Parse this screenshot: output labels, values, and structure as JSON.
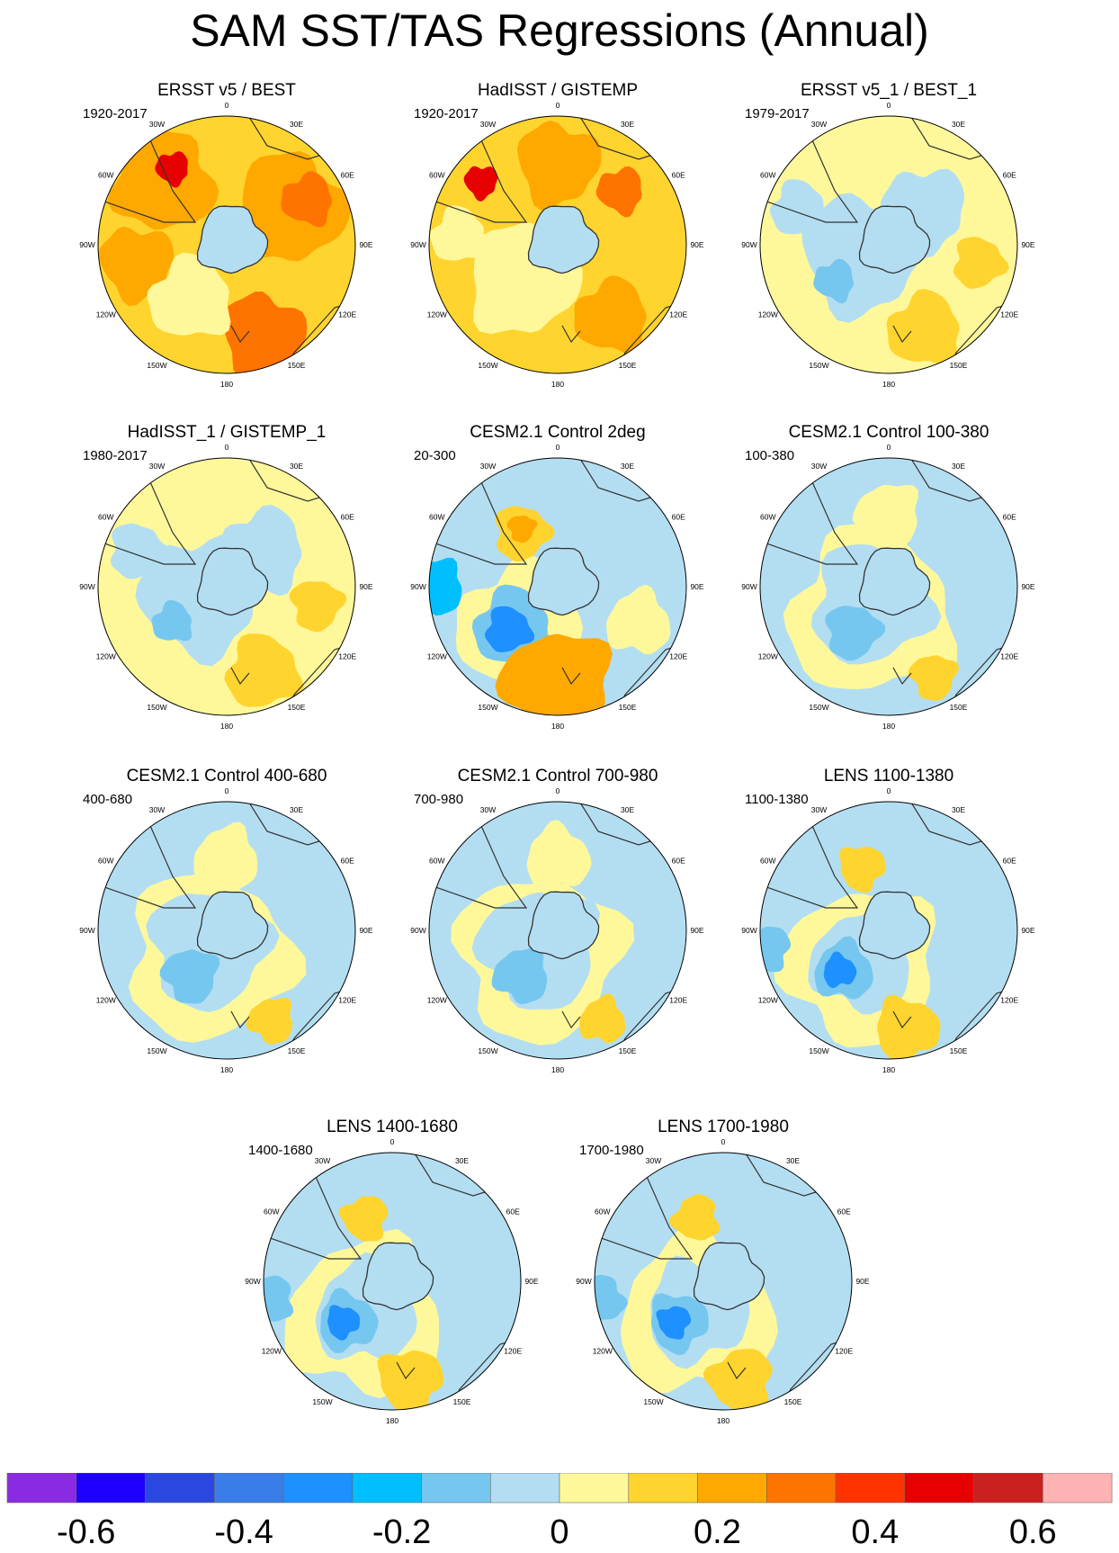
{
  "title": "SAM SST/TAS Regressions (Annual)",
  "longitude_labels": [
    "0",
    "30E",
    "60E",
    "90E",
    "120E",
    "150E",
    "180",
    "150W",
    "120W",
    "90W",
    "60W",
    "30W"
  ],
  "chart_data": {
    "type": "heatmap",
    "projection": "south polar stereographic",
    "variable": "SST/TAS regression onto SAM index",
    "panels": [
      {
        "title": "ERSST v5 / BEST",
        "period": "1920-2017",
        "pattern": "obs-warm"
      },
      {
        "title": "HadISST / GISTEMP",
        "period": "1920-2017",
        "pattern": "obs-warm2"
      },
      {
        "title": "ERSST v5_1 / BEST_1",
        "period": "1979-2017",
        "pattern": "obs-mixed"
      },
      {
        "title": "HadISST_1 / GISTEMP_1",
        "period": "1980-2017",
        "pattern": "obs-mixed"
      },
      {
        "title": "CESM2.1 Control 2deg",
        "period": "20-300",
        "pattern": "model-strong"
      },
      {
        "title": "CESM2.1 Control 100-380",
        "period": "100-380",
        "pattern": "model-weak"
      },
      {
        "title": "CESM2.1 Control 400-680",
        "period": "400-680",
        "pattern": "model-weak"
      },
      {
        "title": "CESM2.1 Control 700-980",
        "period": "700-980",
        "pattern": "model-weak"
      },
      {
        "title": "LENS 1100-1380",
        "period": "1100-1380",
        "pattern": "model-mid"
      },
      {
        "title": "LENS 1400-1680",
        "period": "1400-1680",
        "pattern": "model-mid"
      },
      {
        "title": "LENS 1700-1980",
        "period": "1700-1980",
        "pattern": "model-mid"
      }
    ],
    "colorbar": {
      "colors": [
        "#8a2be2",
        "#1e00ff",
        "#2a47e0",
        "#3a7de8",
        "#1e90ff",
        "#00bfff",
        "#76c7f0",
        "#b3def2",
        "#fff89a",
        "#ffd42e",
        "#ffa800",
        "#ff7300",
        "#ff3300",
        "#e60000",
        "#cc1f1f",
        "#ffb3b3"
      ],
      "tick_labels": [
        "-0.6",
        "-0.4",
        "-0.2",
        "0",
        "0.2",
        "0.4",
        "0.6"
      ],
      "tick_values": [
        -0.6,
        -0.4,
        -0.2,
        0,
        0.2,
        0.4,
        0.6
      ],
      "range": [
        -0.7,
        0.7
      ]
    }
  }
}
